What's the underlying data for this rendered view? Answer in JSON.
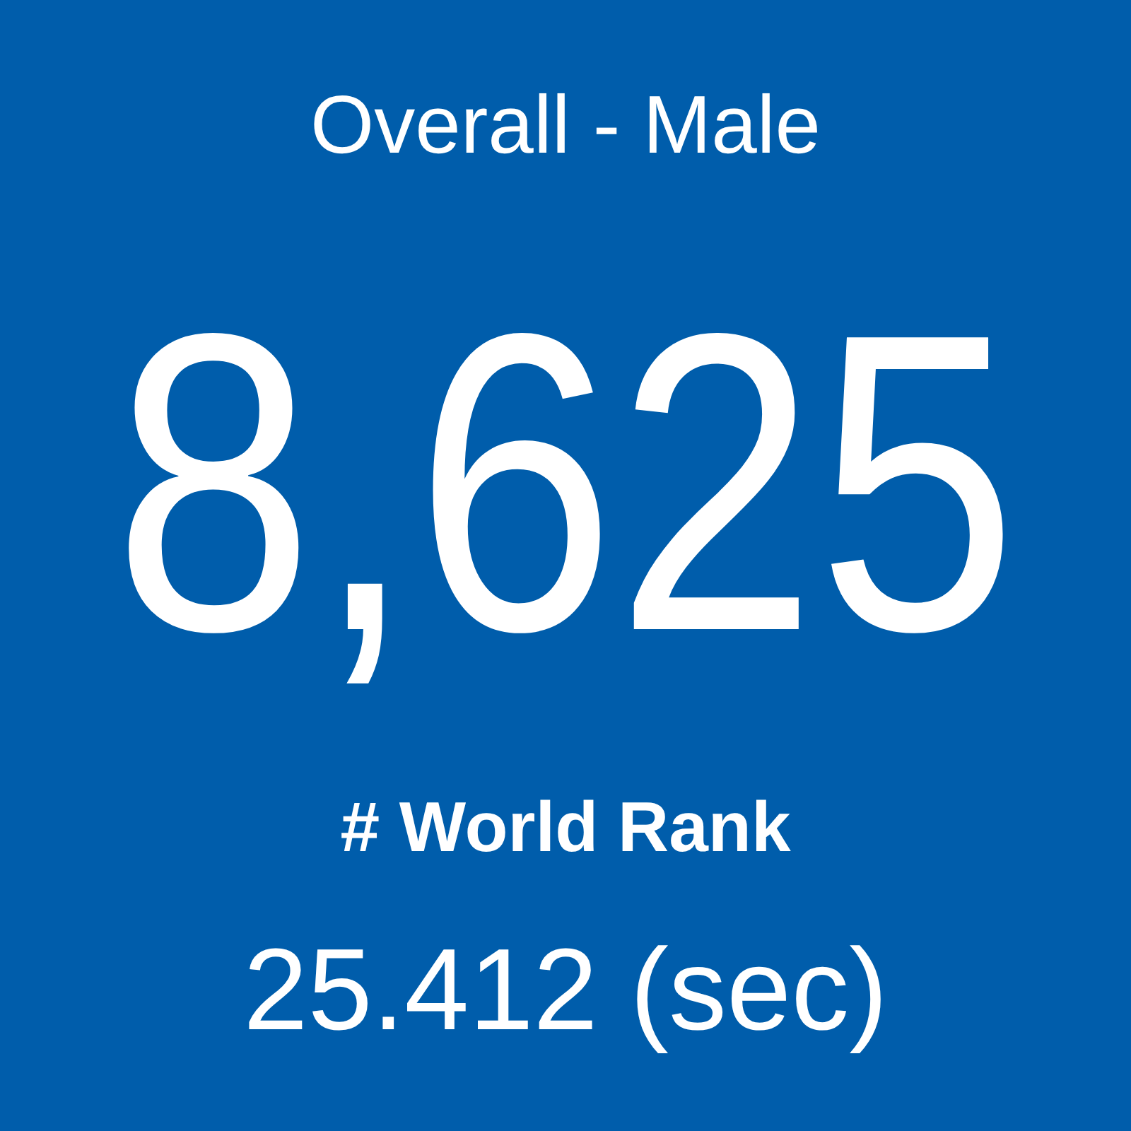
{
  "chart_data": {
    "type": "other",
    "title": "Overall - Male",
    "values": [
      8625
    ],
    "value_labels": [
      "8,625"
    ],
    "categories": [
      "# World Rank"
    ],
    "annotations": [
      "25.412 (sec)"
    ]
  }
}
